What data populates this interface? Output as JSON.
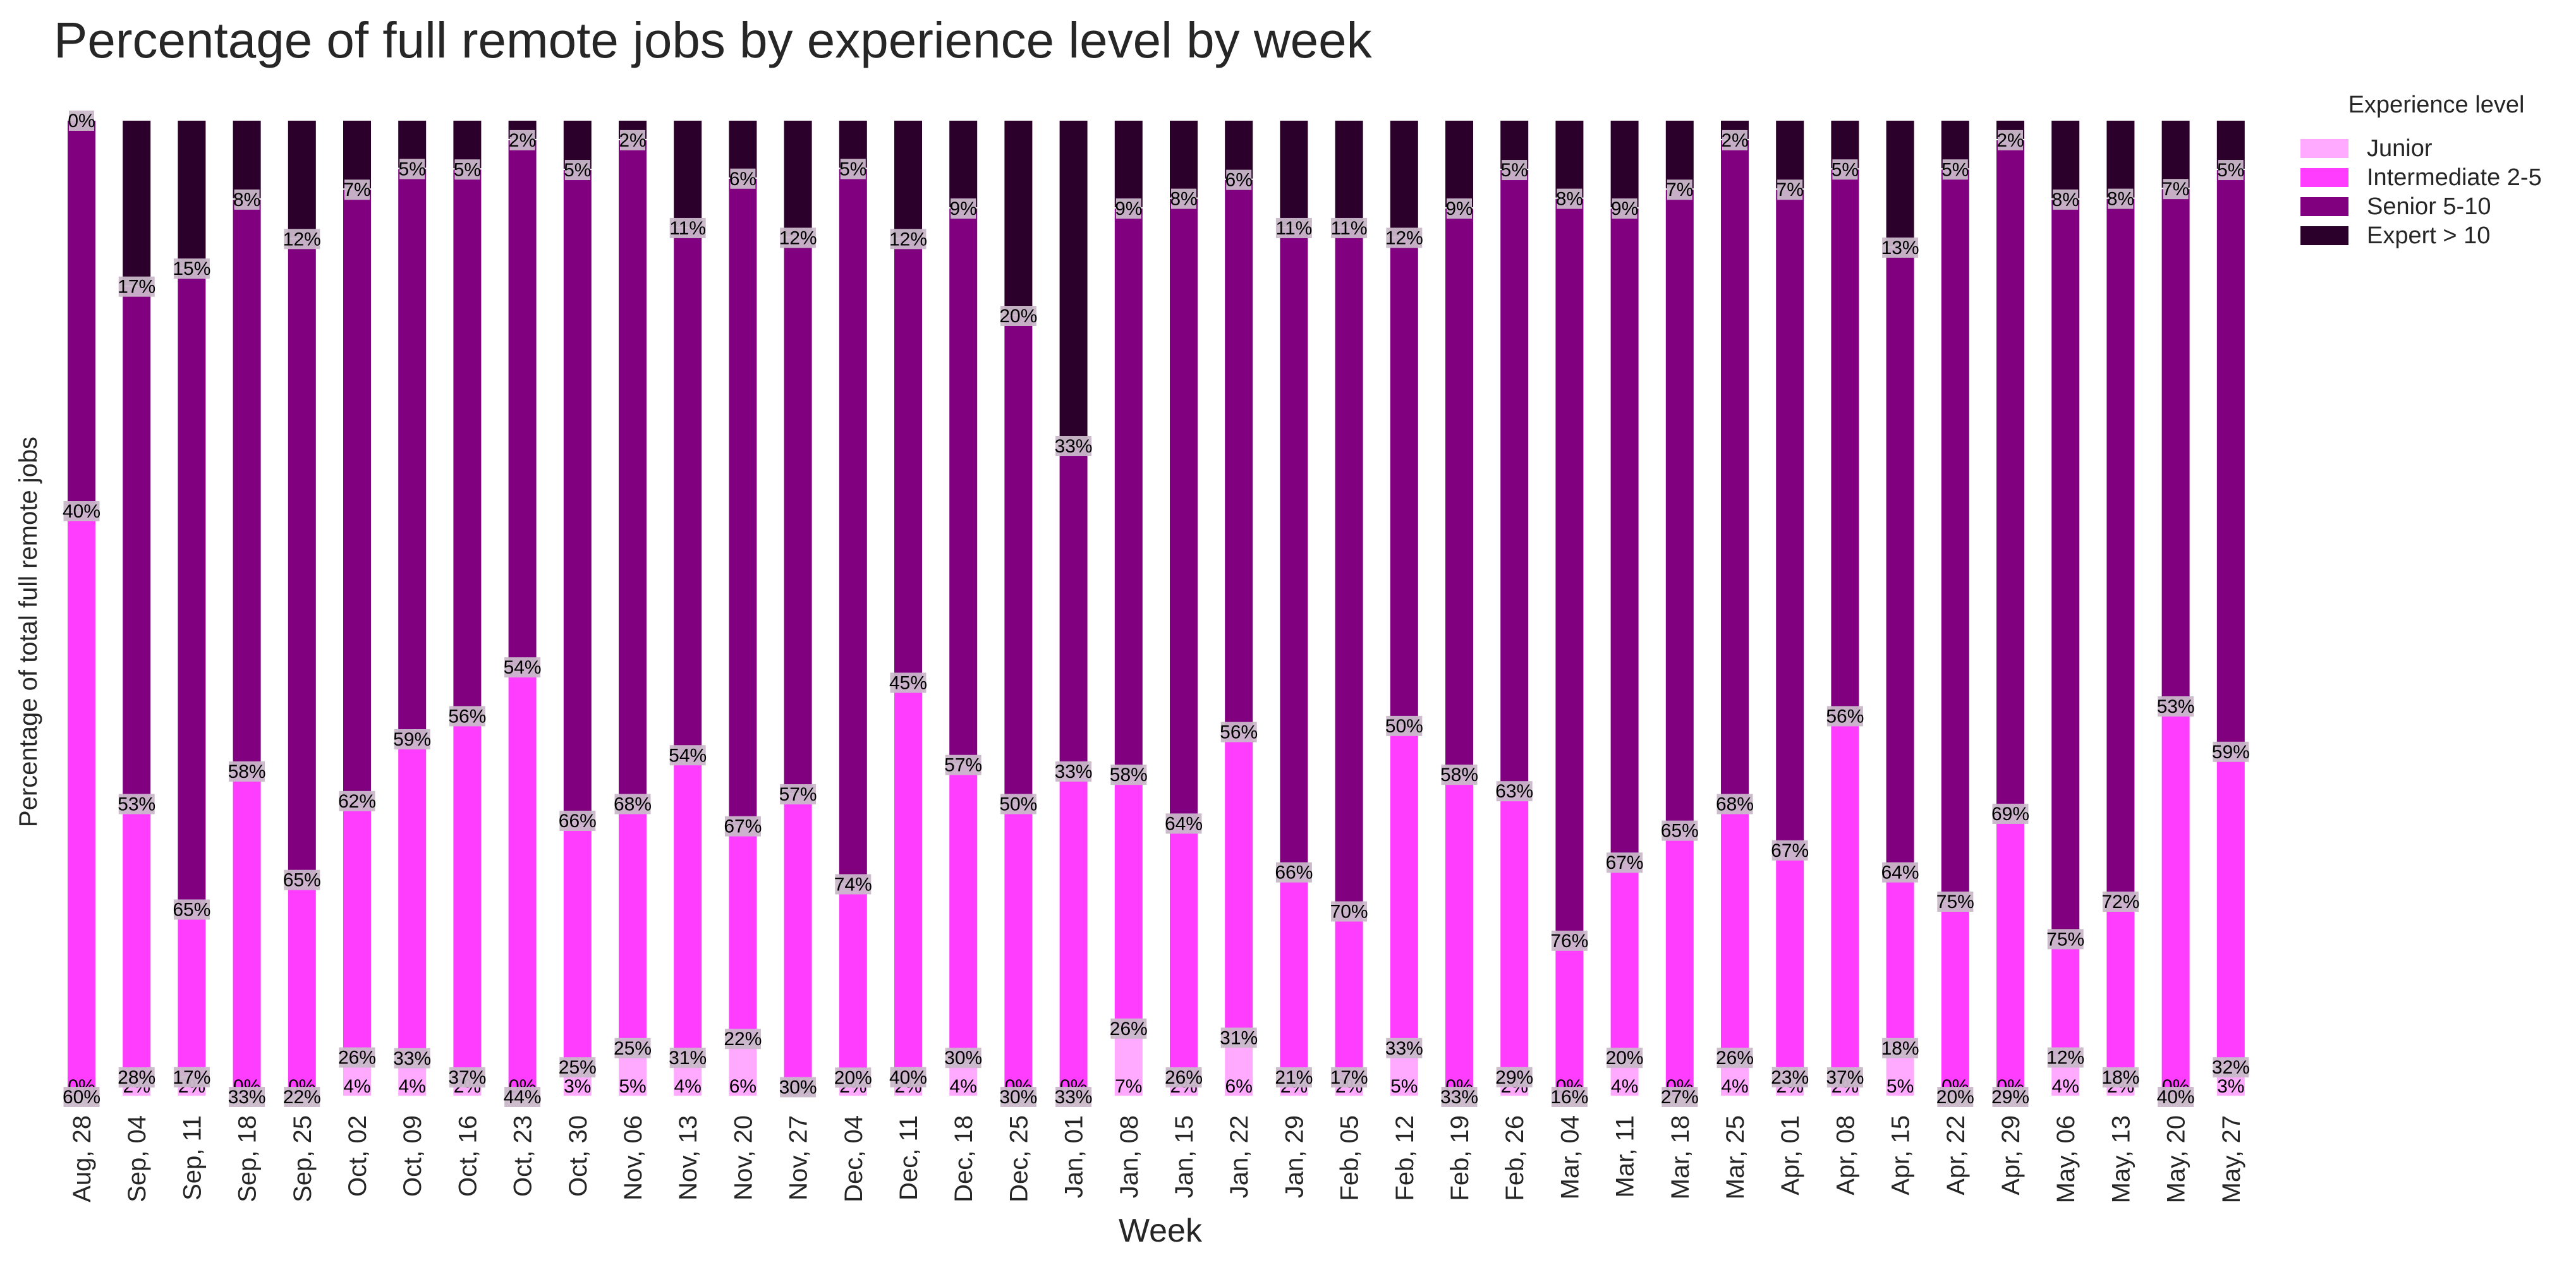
{
  "chart_data": {
    "type": "bar",
    "stacked": true,
    "title": "Percentage of full remote jobs by experience level by week",
    "xlabel": "Week",
    "ylabel": "Percentage of total full remote jobs",
    "ylim": [
      0,
      100
    ],
    "grid": false,
    "legend": {
      "title": "Experience level",
      "placement": "outside-top-right"
    },
    "categories": [
      "Aug, 28",
      "Sep, 04",
      "Sep, 11",
      "Sep, 18",
      "Sep, 25",
      "Oct, 02",
      "Oct, 09",
      "Oct, 16",
      "Oct, 23",
      "Oct, 30",
      "Nov, 06",
      "Nov, 13",
      "Nov, 20",
      "Nov, 27",
      "Dec, 04",
      "Dec, 11",
      "Dec, 18",
      "Dec, 25",
      "Jan, 01",
      "Jan, 08",
      "Jan, 15",
      "Jan, 22",
      "Jan, 29",
      "Feb, 05",
      "Feb, 12",
      "Feb, 19",
      "Feb, 26",
      "Mar, 04",
      "Mar, 11",
      "Mar, 18",
      "Mar, 25",
      "Apr, 01",
      "Apr, 08",
      "Apr, 15",
      "Apr, 22",
      "Apr, 29",
      "May, 06",
      "May, 13",
      "May, 20",
      "May, 27"
    ],
    "series": [
      {
        "name": "Junior",
        "color": "#ffaaff",
        "values": [
          0,
          2,
          2,
          0,
          0,
          4,
          4,
          2,
          0,
          3,
          5,
          4,
          6,
          1,
          2,
          2,
          4,
          0,
          0,
          7,
          2,
          6,
          2,
          2,
          5,
          0,
          2,
          0,
          4,
          0,
          4,
          2,
          2,
          5,
          0,
          0,
          4,
          2,
          0,
          3
        ]
      },
      {
        "name": "Intermediate 2-5",
        "color": "#ff3dff",
        "values": [
          60,
          28,
          17,
          33,
          22,
          26,
          33,
          37,
          44,
          25,
          25,
          31,
          22,
          30,
          20,
          40,
          30,
          30,
          33,
          26,
          26,
          31,
          21,
          17,
          33,
          33,
          29,
          16,
          20,
          27,
          26,
          23,
          37,
          18,
          20,
          29,
          12,
          18,
          40,
          32
        ]
      },
      {
        "name": "Senior 5-10",
        "color": "#800080",
        "values": [
          40,
          53,
          65,
          58,
          65,
          62,
          59,
          56,
          54,
          66,
          68,
          54,
          67,
          57,
          74,
          45,
          57,
          50,
          33,
          58,
          64,
          56,
          66,
          70,
          50,
          58,
          63,
          76,
          67,
          65,
          68,
          67,
          56,
          64,
          75,
          69,
          75,
          72,
          53,
          59
        ]
      },
      {
        "name": "Expert > 10",
        "color": "#2b002b",
        "values": [
          0,
          17,
          15,
          8,
          12,
          7,
          5,
          5,
          2,
          5,
          2,
          11,
          6,
          12,
          5,
          12,
          9,
          20,
          33,
          9,
          8,
          6,
          11,
          11,
          12,
          9,
          5,
          8,
          9,
          7,
          2,
          7,
          5,
          13,
          5,
          2,
          8,
          8,
          7,
          5
        ]
      }
    ]
  }
}
